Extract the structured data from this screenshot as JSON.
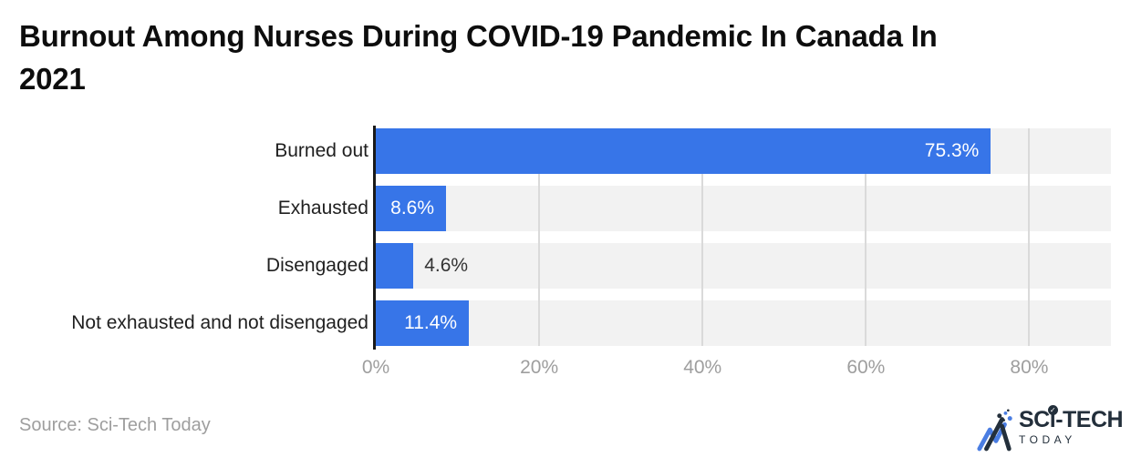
{
  "page": {
    "title": "Burnout Among Nurses During COVID-19 Pandemic In Canada In 2021",
    "source_note": "Source: Sci-Tech Today"
  },
  "logo": {
    "brand_top_sc": "SC",
    "brand_top_i": "i",
    "brand_top_tech": "-TECH",
    "brand_bottom": "TODAY",
    "check_glyph": "✓",
    "brand_dark": "#232f3b",
    "brand_blue": "#4a7de2"
  },
  "chart_data": {
    "type": "bar",
    "orientation": "horizontal",
    "title": "Burnout Among Nurses During COVID-19 Pandemic In Canada In 2021",
    "categories": [
      "Burned out",
      "Exhausted",
      "Disengaged",
      "Not exhausted and not disengaged"
    ],
    "values": [
      75.3,
      8.6,
      4.6,
      11.4
    ],
    "value_labels": [
      "75.3%",
      "8.6%",
      "4.6%",
      "11.4%"
    ],
    "xlim": [
      0,
      90
    ],
    "xticks": [
      {
        "value": 0,
        "label": "0%"
      },
      {
        "value": 20,
        "label": "20%"
      },
      {
        "value": 40,
        "label": "40%"
      },
      {
        "value": 60,
        "label": "60%"
      },
      {
        "value": 80,
        "label": "80%"
      }
    ],
    "gridline_values": [
      20,
      40,
      60,
      80
    ],
    "grid": true,
    "legend": false,
    "colors": {
      "bar": "#3775e8",
      "track": "#f2f2f2",
      "gridline": "#dadada",
      "axis_line": "#1a1a1a",
      "tick_label": "#9e9e9e",
      "category_label": "#1f1f1f",
      "value_label_inside": "#ffffff",
      "value_label_outside": "#333333"
    }
  }
}
